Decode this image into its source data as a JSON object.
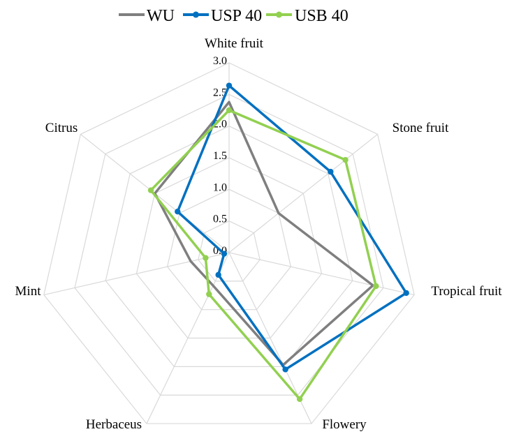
{
  "chart_data": {
    "type": "radar",
    "axes": [
      "White fruit",
      "Stone fruit",
      "Tropical fruit",
      "Flowery",
      "Herbaceus",
      "Mint",
      "Citrus"
    ],
    "ticks": [
      "0.0",
      "0.5",
      "1.0",
      "1.5",
      "2.0",
      "2.5",
      "3.0"
    ],
    "range": [
      0,
      3.0
    ],
    "grid": true,
    "legend_position": "top",
    "series": [
      {
        "name": "WU",
        "color": "#7f7f7f",
        "markers": false,
        "values": [
          2.38,
          1.0,
          2.33,
          1.97,
          0.58,
          0.62,
          1.5
        ]
      },
      {
        "name": "USP 40",
        "color": "#0070c0",
        "markers": true,
        "values": [
          2.64,
          2.05,
          2.87,
          2.05,
          0.39,
          0.08,
          1.04
        ]
      },
      {
        "name": "USB 40",
        "color": "#92d050",
        "markers": true,
        "values": [
          2.25,
          2.35,
          2.38,
          2.57,
          0.73,
          0.38,
          1.58
        ]
      }
    ]
  }
}
